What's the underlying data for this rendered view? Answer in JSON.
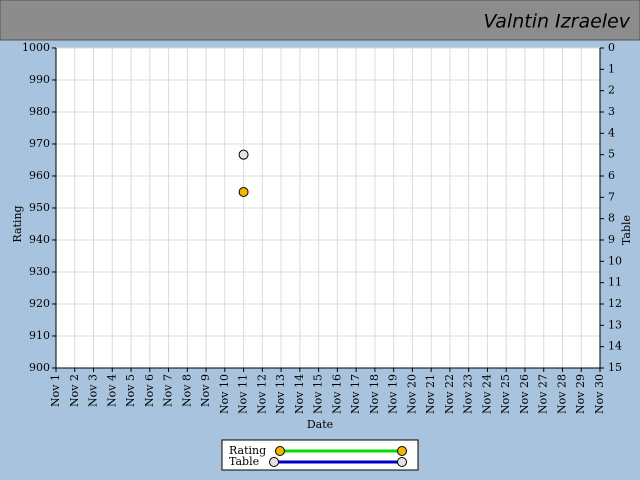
{
  "header": {
    "name": "Valntin Izraelev"
  },
  "chart_data": {
    "type": "line",
    "x_label": "Date",
    "y_label": "Rating",
    "y2_label": "Table",
    "categories": [
      "Nov 1",
      "Nov 2",
      "Nov 3",
      "Nov 4",
      "Nov 5",
      "Nov 6",
      "Nov 7",
      "Nov 8",
      "Nov 9",
      "Nov 10",
      "Nov 11",
      "Nov 12",
      "Nov 13",
      "Nov 14",
      "Nov 15",
      "Nov 16",
      "Nov 17",
      "Nov 18",
      "Nov 19",
      "Nov 20",
      "Nov 21",
      "Nov 22",
      "Nov 23",
      "Nov 24",
      "Nov 25",
      "Nov 26",
      "Nov 27",
      "Nov 28",
      "Nov 29",
      "Nov 30"
    ],
    "series": [
      {
        "name": "Rating",
        "color": "#00dd00",
        "marker_color": "#f5b400",
        "values": [
          null,
          null,
          null,
          null,
          null,
          null,
          null,
          null,
          null,
          null,
          955,
          null,
          null,
          null,
          null,
          null,
          null,
          null,
          null,
          null,
          null,
          null,
          null,
          null,
          null,
          null,
          null,
          null,
          null,
          null
        ]
      },
      {
        "name": "Table",
        "color": "#0000cc",
        "marker_color": "#e4e4e4",
        "axis": "y2",
        "values": [
          null,
          null,
          null,
          null,
          null,
          null,
          null,
          null,
          null,
          null,
          5,
          null,
          null,
          null,
          null,
          null,
          null,
          null,
          null,
          null,
          null,
          null,
          null,
          null,
          null,
          null,
          null,
          null,
          null,
          null
        ]
      }
    ],
    "ylim": [
      900,
      1000
    ],
    "yticks": [
      900,
      910,
      920,
      930,
      940,
      950,
      960,
      970,
      980,
      990,
      1000
    ],
    "y2lim": [
      15,
      0
    ],
    "y2ticks": [
      0,
      1,
      2,
      3,
      4,
      5,
      6,
      7,
      8,
      9,
      10,
      11,
      12,
      13,
      14,
      15
    ],
    "grid": true
  }
}
